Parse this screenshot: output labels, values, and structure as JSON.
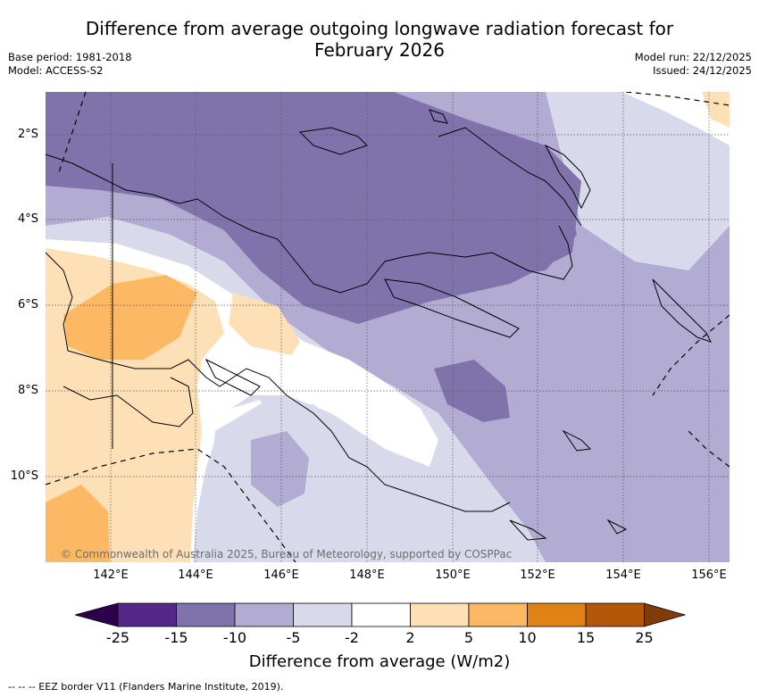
{
  "title_line1": "Difference from average outgoing longwave radiation forecast for",
  "title_line2": "February 2026",
  "base_period": "Base period: 1981-2018",
  "model": "Model: ACCESS-S2",
  "model_run": "Model run: 22/12/2025",
  "issued": "Issued: 24/12/2025",
  "latitude_labels": [
    "2°S",
    "4°S",
    "6°S",
    "8°S",
    "10°S"
  ],
  "longitude_labels": [
    "142°E",
    "144°E",
    "146°E",
    "148°E",
    "150°E",
    "152°E",
    "154°E",
    "156°E"
  ],
  "copyright": "© Commonwealth of Australia 2025, Bureau of Meteorology, supported by COSPPac",
  "colorbar": {
    "ticks": [
      "-25",
      "-15",
      "-10",
      "-5",
      "-2",
      "2",
      "5",
      "10",
      "15",
      "25"
    ],
    "colors": [
      "#2d004b",
      "#542788",
      "#8073ac",
      "#b2abd2",
      "#d8daeb",
      "#ffffff",
      "#fee0b6",
      "#fdb863",
      "#e08214",
      "#b35806",
      "#7f3b08"
    ],
    "label": "Difference from average (W/m2)"
  },
  "eez_note": "--  --  -- EEZ border V11 (Flanders Marine Institute, 2019)."
}
